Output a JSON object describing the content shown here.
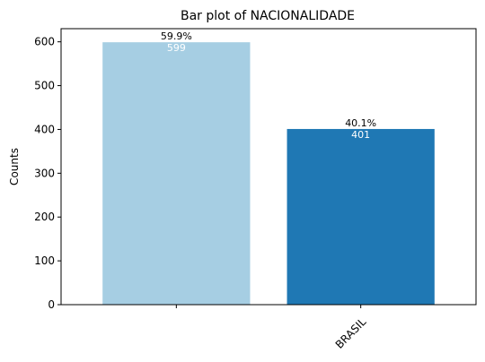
{
  "chart_data": {
    "type": "bar",
    "title": "Bar plot of NACIONALIDADE",
    "xlabel": "",
    "ylabel": "Counts",
    "ylim": [
      0,
      630
    ],
    "yticks": [
      0,
      100,
      200,
      300,
      400,
      500,
      600
    ],
    "categories": [
      "",
      "BRASIL"
    ],
    "values": [
      599,
      401
    ],
    "percent_labels": [
      "59.9%",
      "40.1%"
    ],
    "count_labels": [
      "599",
      "401"
    ],
    "bar_colors": [
      "#a6cee3",
      "#1f78b4"
    ],
    "grid": false,
    "legend": false
  }
}
